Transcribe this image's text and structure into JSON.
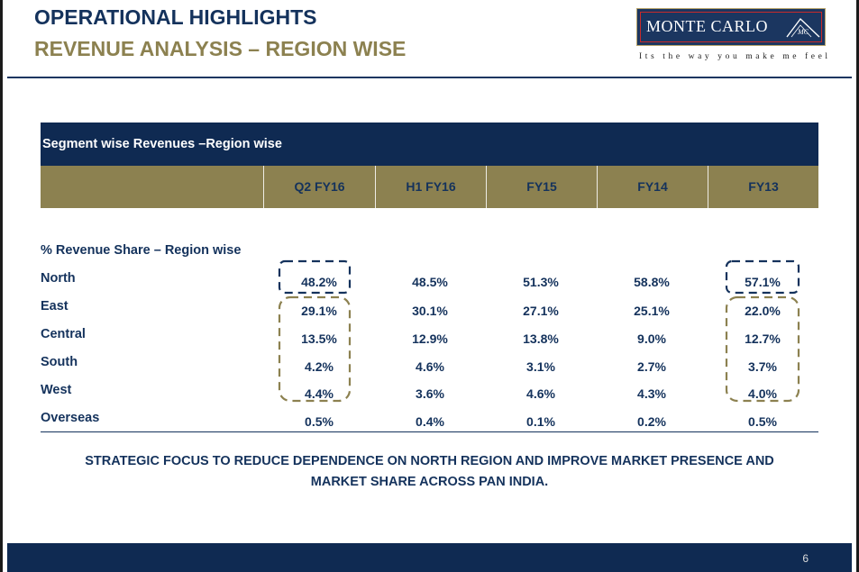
{
  "header": {
    "title_line1": "OPERATIONAL HIGHLIGHTS",
    "title_line2": "REVENUE ANALYSIS – REGION WISE"
  },
  "logo": {
    "brand": "MONTE CARLO",
    "monogram": "MC",
    "tagline": "Its the way you make me feel"
  },
  "table": {
    "section_header": "Segment wise Revenues –Region wise",
    "columns": [
      "Q2 FY16",
      "H1 FY16",
      "FY15",
      "FY14",
      "FY13"
    ],
    "subheader": "% Revenue Share – Region wise",
    "rows": [
      {
        "region": "North",
        "values": [
          "48.2%",
          "48.5%",
          "51.3%",
          "58.8%",
          "57.1%"
        ]
      },
      {
        "region": "East",
        "values": [
          "29.1%",
          "30.1%",
          "27.1%",
          "25.1%",
          "22.0%"
        ]
      },
      {
        "region": "Central",
        "values": [
          "13.5%",
          "12.9%",
          "13.8%",
          "9.0%",
          "12.7%"
        ]
      },
      {
        "region": "South",
        "values": [
          "4.2%",
          "4.6%",
          "3.1%",
          "2.7%",
          "3.7%"
        ]
      },
      {
        "region": "West",
        "values": [
          "4.4%",
          "3.6%",
          "4.6%",
          "4.3%",
          "4.0%"
        ]
      },
      {
        "region": "Overseas",
        "values": [
          "0.5%",
          "0.4%",
          "0.1%",
          "0.2%",
          "0.5%"
        ]
      }
    ]
  },
  "callout": {
    "line1": "STRATEGIC FOCUS TO REDUCE DEPENDENCE ON NORTH REGION AND IMPROVE MARKET PRESENCE AND",
    "line2": "MARKET SHARE ACROSS PAN INDIA."
  },
  "footer": {
    "page_number": "6"
  },
  "colors": {
    "navy": "#0f2a52",
    "gold": "#8c8150",
    "logo_border_red": "#c82a2a"
  }
}
